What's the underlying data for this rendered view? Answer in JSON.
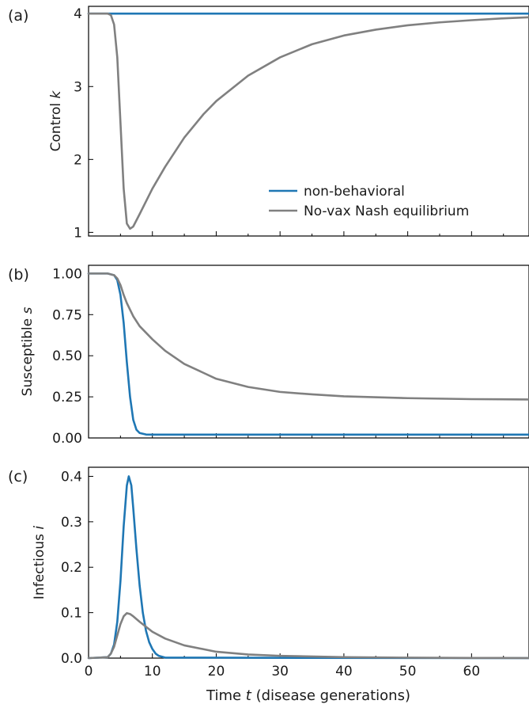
{
  "x_axis": {
    "label_prefix": "Time ",
    "label_var": "t",
    "label_suffix": " (disease generations)",
    "xlim": [
      0,
      69
    ],
    "ticks": [
      0,
      10,
      20,
      30,
      40,
      50,
      60
    ],
    "tick_labels": [
      "0",
      "10",
      "20",
      "30",
      "40",
      "50",
      "60"
    ]
  },
  "colors": {
    "non_behavioral": "#1f77b4",
    "nash": "#808080"
  },
  "chart_data": [
    {
      "type": "line",
      "panel_label": "(a)",
      "ylabel_prefix": "Control ",
      "ylabel_var": "k",
      "ylim": [
        0.95,
        4.1
      ],
      "yticks": [
        1,
        2,
        3,
        4
      ],
      "ytick_labels": [
        "1",
        "2",
        "3",
        "4"
      ],
      "legend": {
        "position": "lower-right",
        "entries": [
          "non-behavioral",
          "No-vax Nash equilibrium"
        ]
      },
      "series": [
        {
          "name": "non-behavioral",
          "color": "#1f77b4",
          "x": [
            0,
            69
          ],
          "y": [
            4,
            4
          ]
        },
        {
          "name": "No-vax Nash equilibrium",
          "color": "#808080",
          "x": [
            0,
            3,
            3.5,
            4,
            4.5,
            5,
            5.5,
            6,
            6.5,
            7,
            8,
            10,
            12,
            15,
            18,
            20,
            25,
            30,
            35,
            40,
            45,
            50,
            55,
            60,
            65,
            69
          ],
          "y": [
            4,
            4,
            3.98,
            3.85,
            3.4,
            2.5,
            1.6,
            1.12,
            1.05,
            1.08,
            1.25,
            1.6,
            1.9,
            2.3,
            2.62,
            2.8,
            3.15,
            3.4,
            3.58,
            3.7,
            3.78,
            3.84,
            3.88,
            3.91,
            3.935,
            3.95
          ]
        }
      ]
    },
    {
      "type": "line",
      "panel_label": "(b)",
      "ylabel_prefix": "Susceptible ",
      "ylabel_var": "s",
      "ylim": [
        0,
        1.05
      ],
      "yticks": [
        0,
        0.25,
        0.5,
        0.75,
        1.0
      ],
      "ytick_labels": [
        "0.00",
        "0.25",
        "0.50",
        "0.75",
        "1.00"
      ],
      "series": [
        {
          "name": "non-behavioral",
          "color": "#1f77b4",
          "x": [
            0,
            3,
            4,
            4.5,
            5,
            5.5,
            6,
            6.5,
            7,
            7.5,
            8,
            9,
            10,
            12,
            69
          ],
          "y": [
            1,
            1,
            0.99,
            0.96,
            0.87,
            0.7,
            0.46,
            0.25,
            0.11,
            0.05,
            0.03,
            0.021,
            0.02,
            0.02,
            0.02
          ]
        },
        {
          "name": "No-vax Nash equilibrium",
          "color": "#808080",
          "x": [
            0,
            3,
            4,
            4.5,
            5,
            5.5,
            6,
            7,
            8,
            10,
            12,
            15,
            20,
            25,
            30,
            35,
            40,
            50,
            60,
            69
          ],
          "y": [
            1,
            1,
            0.99,
            0.97,
            0.93,
            0.87,
            0.82,
            0.74,
            0.68,
            0.6,
            0.53,
            0.45,
            0.36,
            0.31,
            0.28,
            0.265,
            0.253,
            0.242,
            0.236,
            0.234
          ]
        }
      ]
    },
    {
      "type": "line",
      "panel_label": "(c)",
      "ylabel_prefix": "Infectious ",
      "ylabel_var": "i",
      "ylim": [
        0,
        0.42
      ],
      "yticks": [
        0,
        0.1,
        0.2,
        0.3,
        0.4
      ],
      "ytick_labels": [
        "0.0",
        "0.1",
        "0.2",
        "0.3",
        "0.4"
      ],
      "series": [
        {
          "name": "non-behavioral",
          "color": "#1f77b4",
          "x": [
            0,
            3,
            3.5,
            4,
            4.5,
            5,
            5.5,
            6,
            6.3,
            6.7,
            7,
            7.5,
            8,
            8.5,
            9,
            9.5,
            10,
            10.5,
            11,
            12,
            69
          ],
          "y": [
            0,
            0.002,
            0.01,
            0.03,
            0.08,
            0.17,
            0.29,
            0.38,
            0.4,
            0.38,
            0.33,
            0.24,
            0.16,
            0.1,
            0.06,
            0.035,
            0.02,
            0.01,
            0.005,
            0.001,
            0
          ]
        },
        {
          "name": "No-vax Nash equilibrium",
          "color": "#808080",
          "x": [
            0,
            3,
            3.5,
            4,
            4.5,
            5,
            5.5,
            6,
            6.5,
            7,
            8,
            10,
            12,
            15,
            20,
            25,
            30,
            40,
            50,
            60,
            69
          ],
          "y": [
            0,
            0.002,
            0.01,
            0.025,
            0.05,
            0.075,
            0.092,
            0.099,
            0.097,
            0.092,
            0.08,
            0.058,
            0.043,
            0.028,
            0.014,
            0.008,
            0.005,
            0.002,
            0.001,
            0.0004,
            0.0002
          ]
        }
      ]
    }
  ]
}
